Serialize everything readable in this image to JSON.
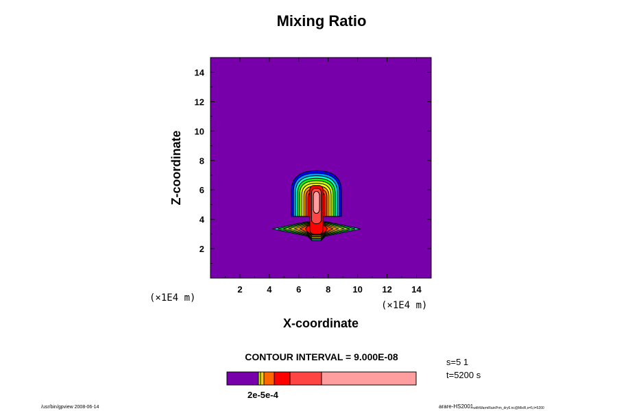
{
  "chart_data": {
    "type": "heatmap",
    "title": "Mixing Ratio",
    "xlabel": "X-coordinate",
    "ylabel": "Z-coordinate",
    "x_unit": "(×1E4 m)",
    "y_unit": "(×1E4 m)",
    "xlim": [
      0,
      15
    ],
    "ylim": [
      0,
      15
    ],
    "xticks": [
      "2",
      "4",
      "6",
      "8",
      "10",
      "12",
      "14"
    ],
    "yticks": [
      "2",
      "4",
      "6",
      "8",
      "10",
      "12",
      "14"
    ],
    "contour_interval_label": "CONTOUR INTERVAL = 9.000E-08",
    "colorbar": {
      "colors": [
        "#7700aa",
        "#ccff00",
        "#ffcc00",
        "#ff6600",
        "#ff0000",
        "#ff4444",
        "#ff9e9e"
      ],
      "label": "2e-5e-4"
    },
    "plume_center_x": 7.2,
    "background_color": "#7700aa",
    "contour_colors": [
      "#0000ff",
      "#0099ff",
      "#00ffcc",
      "#00ff00",
      "#ccff00",
      "#ffff00",
      "#ff9900",
      "#ff4400",
      "#ff0000",
      "#ff4444",
      "#ff9e9e"
    ]
  },
  "info": {
    "s": "s=5 1",
    "t": "t=5200 s"
  },
  "footer": {
    "left": "/usr/bin/gpview 2008-06-14",
    "right_main": "arare-HS2001",
    "right_sub": "withWarmRainPrm_dry6.nc@MixR,s=5,t=5200"
  }
}
